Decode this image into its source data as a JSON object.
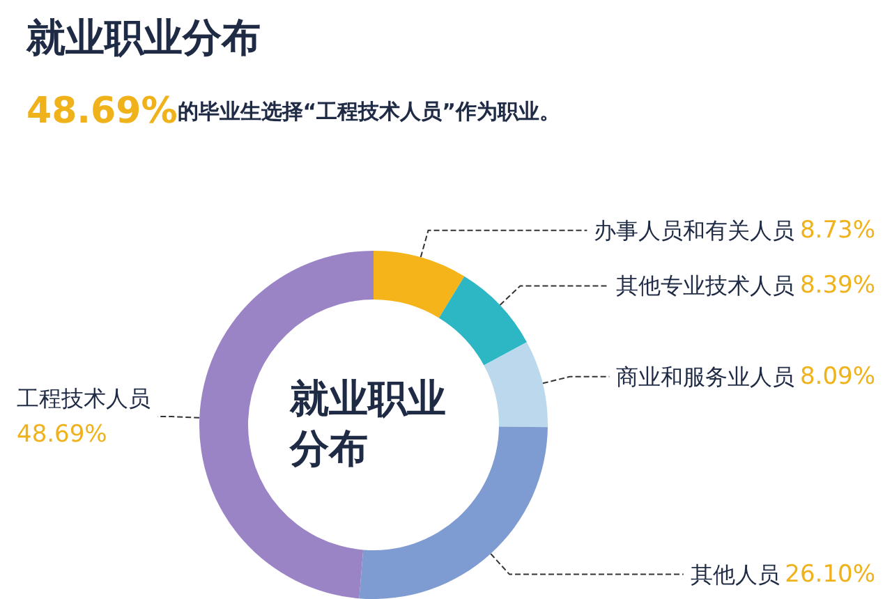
{
  "chart_data": {
    "type": "donut",
    "title": "就业职业分布",
    "subtitle": "48.69%的毕业生选择“工程技术人员”作为职业。",
    "categories": [
      "办事人员和有关人员",
      "其他专业技术人员",
      "商业和服务业人员",
      "其他人员",
      "工程技术人员"
    ],
    "values": [
      8.73,
      8.39,
      8.09,
      26.1,
      48.69
    ],
    "value_labels": [
      "8.73%",
      "8.39%",
      "8.09%",
      "26.10%",
      "48.69%"
    ],
    "colors": [
      "#f4b41a",
      "#2db6c4",
      "#bcd8ec",
      "#7e9bd2",
      "#9b84c6"
    ],
    "annotations": [
      "就业职业分布"
    ],
    "legend": false
  }
}
